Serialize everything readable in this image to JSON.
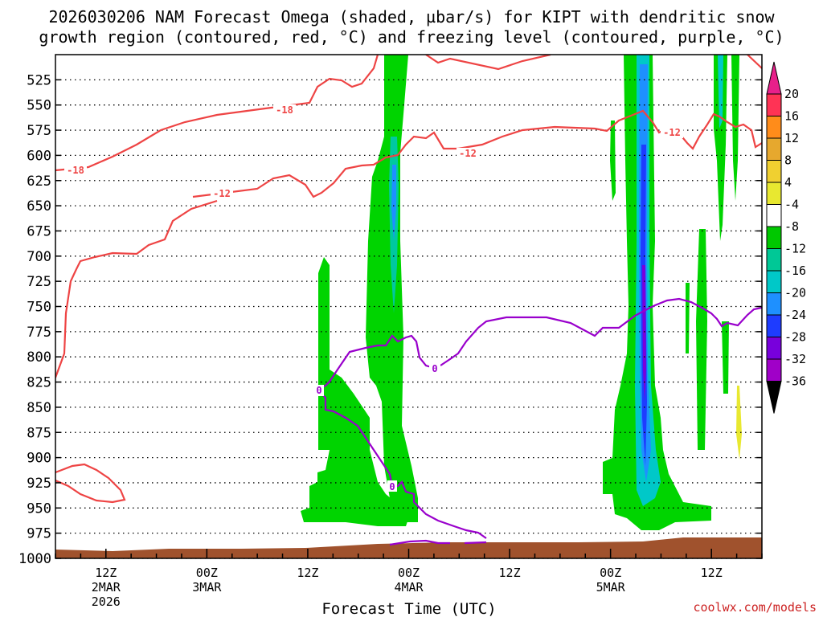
{
  "chart_data": {
    "type": "heatmap",
    "title_line1": "2026030206 NAM Forecast Omega (shaded, µbar/s) for KIPT with dendritic snow",
    "title_line2": "growth region (contoured, red, °C) and freezing level (contoured, purple, °C)",
    "xlabel": "Forecast Time (UTC)",
    "ylabel": "",
    "y_axis_reversed": true,
    "y_ticks": [
      "525",
      "550",
      "575",
      "600",
      "625",
      "650",
      "675",
      "700",
      "725",
      "750",
      "775",
      "800",
      "825",
      "850",
      "875",
      "900",
      "925",
      "950",
      "975",
      "1000"
    ],
    "y_range_hpa": [
      500,
      1000
    ],
    "x_ticks": [
      {
        "hour": 6,
        "label": "12Z",
        "sub1": "2MAR",
        "sub2": "2026"
      },
      {
        "hour": 18,
        "label": "00Z",
        "sub1": "3MAR",
        "sub2": ""
      },
      {
        "hour": 30,
        "label": "12Z",
        "sub1": "",
        "sub2": ""
      },
      {
        "hour": 42,
        "label": "00Z",
        "sub1": "4MAR",
        "sub2": ""
      },
      {
        "hour": 54,
        "label": "12Z",
        "sub1": "",
        "sub2": ""
      },
      {
        "hour": 66,
        "label": "00Z",
        "sub1": "5MAR",
        "sub2": ""
      },
      {
        "hour": 78,
        "label": "12Z",
        "sub1": "",
        "sub2": ""
      }
    ],
    "x_range_hours": [
      0,
      84
    ],
    "colorbar": {
      "labels": [
        "20",
        "16",
        "12",
        "8",
        "4",
        "-4",
        "-8",
        "-12",
        "-16",
        "-20",
        "-24",
        "-28",
        "-32",
        "-36"
      ],
      "colors": [
        "#ff3355",
        "#ff8c1a",
        "#e6a82e",
        "#f0d030",
        "#e8e830",
        "#ffffff",
        "#00c800",
        "#00c896",
        "#00c8c8",
        "#1e90ff",
        "#1e3cff",
        "#7800dc",
        "#a000c8",
        "#a0a0a0",
        "#000000"
      ]
    },
    "contour_labels": [
      {
        "text": "-18",
        "color": "#ee4444"
      },
      {
        "text": "-18",
        "color": "#ee4444"
      },
      {
        "text": "-12",
        "color": "#ee4444"
      },
      {
        "text": "-12",
        "color": "#ee4444"
      },
      {
        "text": "-12",
        "color": "#ee4444"
      },
      {
        "text": "0",
        "color": "#9900cc"
      },
      {
        "text": "0",
        "color": "#9900cc"
      },
      {
        "text": "0",
        "color": "#9900cc"
      }
    ],
    "omega_regions": [
      {
        "name": "late-2MAR-ascent",
        "center_hour": 33,
        "pressure_top": 680,
        "pressure_bottom": 960,
        "min_omega": -8
      },
      {
        "name": "early-4MAR-ascent",
        "center_hour": 40,
        "pressure_top": 500,
        "pressure_bottom": 960,
        "min_omega": -16
      },
      {
        "name": "5MAR-strong-ascent",
        "center_hour": 70,
        "pressure_top": 500,
        "pressure_bottom": 975,
        "min_omega": -32
      }
    ]
  },
  "credit": "coolwx.com/models"
}
